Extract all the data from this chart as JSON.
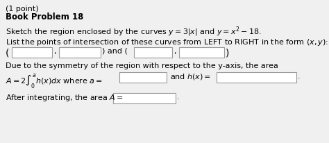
{
  "bg_color": "#f0f0f0",
  "box_edge_color": "#999999",
  "text_color": "#000000",
  "font_size": 8.0,
  "bold_font_size": 8.5,
  "title_line1": "(1 point)",
  "title_line2": "Book Problem 18",
  "line1": "Sketch the region enclosed by the curves $y = 3|x|$ and $y = x^2 - 18$.",
  "line2": "List the points of intersection of these curves from LEFT to RIGHT in the form $(x, y)$:",
  "line4": "Due to the symmetry of the region with respect to the y-axis, the area",
  "line5_math": "$A = 2\\int_0^a h(x)dx$ where $a =$",
  "line5_mid": "and $h(x) =$",
  "line6": "After integrating, the area $A =$"
}
